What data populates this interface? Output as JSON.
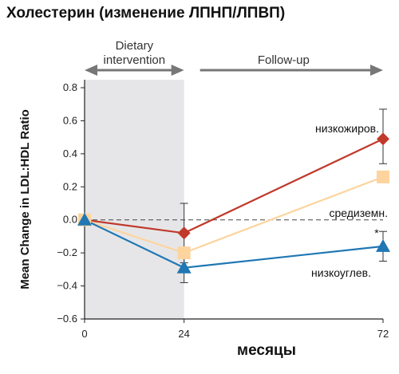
{
  "chart_data": {
    "type": "line",
    "title": "Холестерин (изменение ЛПНП/ЛПВП)",
    "xlabel": "месяцы",
    "ylabel": "Mean Change in LDL:HDL Ratio",
    "x": [
      0,
      24,
      72
    ],
    "x_ticks": [
      "0",
      "24",
      "72"
    ],
    "xlim": [
      0,
      72
    ],
    "ylim": [
      -0.6,
      0.8
    ],
    "y_ticks": [
      -0.6,
      -0.4,
      -0.2,
      0.0,
      0.2,
      0.4,
      0.6,
      0.8
    ],
    "y_tick_labels": [
      "−0.6",
      "−0.4",
      "−0.2",
      "0.0",
      "0.2",
      "0.4",
      "0.6",
      "0.8"
    ],
    "reference_line": {
      "y": 0,
      "style": "dashed"
    },
    "phases": [
      {
        "label_lines": [
          "Dietary",
          "intervention"
        ],
        "from": 0,
        "to": 24,
        "shaded": true
      },
      {
        "label_lines": [
          "Follow-up"
        ],
        "from": 24,
        "to": 72,
        "shaded": false
      }
    ],
    "series": [
      {
        "name": "низкожиров.",
        "color": "#c0392b",
        "marker": "diamond",
        "values": [
          0.0,
          -0.08,
          0.49
        ],
        "err_low": [
          0,
          0.18,
          0.15
        ],
        "err_high": [
          0,
          0.18,
          0.18
        ]
      },
      {
        "name": "средиземн.",
        "color": "#fdd49e",
        "marker": "square",
        "values": [
          0.0,
          -0.2,
          0.26
        ],
        "err_low": [
          0,
          0.0,
          0.0
        ],
        "err_high": [
          0,
          0.0,
          0.0
        ]
      },
      {
        "name": "низкоуглев.",
        "color": "#1f77b4",
        "marker": "triangle",
        "values": [
          0.0,
          -0.29,
          -0.16
        ],
        "err_low": [
          0,
          0.09,
          0.09
        ],
        "err_high": [
          0,
          0.09,
          0.09
        ],
        "annotation": "*"
      }
    ]
  }
}
